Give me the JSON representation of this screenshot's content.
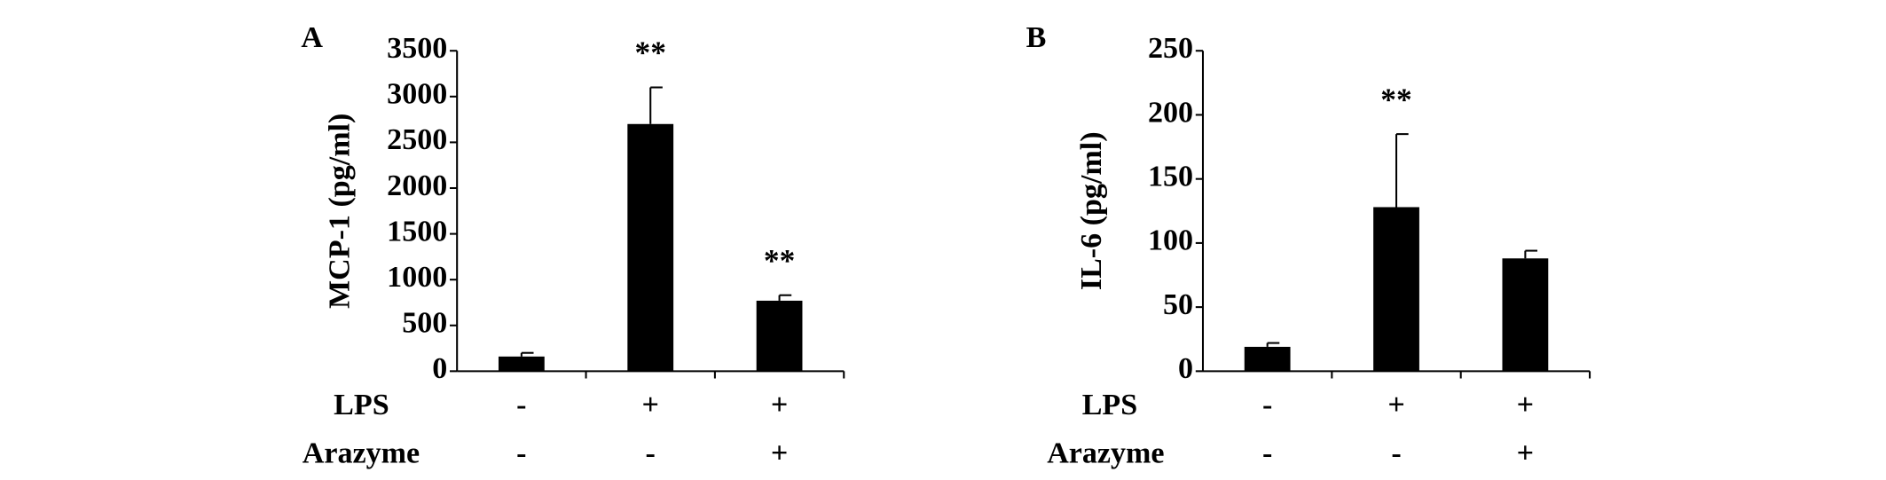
{
  "chart_data": [
    {
      "type": "bar",
      "panel": "A",
      "y_label": "MCP-1 (pg/ml)",
      "color": "#000000",
      "values": [
        160,
        2700,
        770
      ],
      "errors": [
        40,
        400,
        60
      ],
      "annotations": [
        null,
        "**",
        "**"
      ],
      "conditions": [
        {
          "name": "LPS",
          "labels": [
            "-",
            "+",
            "+"
          ]
        },
        {
          "name": "Arazyme",
          "labels": [
            "-",
            "-",
            "+"
          ]
        }
      ],
      "ylim": [
        0,
        3500
      ],
      "yticks": [
        0,
        500,
        1000,
        1500,
        2000,
        2500,
        3000,
        3500
      ]
    },
    {
      "type": "bar",
      "panel": "B",
      "y_label": "IL-6 (pg/ml)",
      "color": "#000000",
      "values": [
        19,
        128,
        88
      ],
      "errors": [
        3,
        57,
        6
      ],
      "annotations": [
        null,
        "**",
        null
      ],
      "conditions": [
        {
          "name": "LPS",
          "labels": [
            "-",
            "+",
            "+"
          ]
        },
        {
          "name": "Arazyme",
          "labels": [
            "-",
            "-",
            "+"
          ]
        }
      ],
      "ylim": [
        0,
        250
      ],
      "yticks": [
        0,
        50,
        100,
        150,
        200,
        250
      ]
    }
  ]
}
